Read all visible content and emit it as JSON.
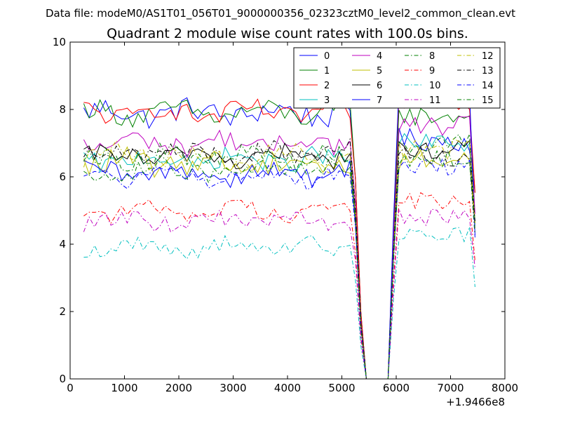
{
  "header": {
    "datafile": "Data file: modeM0/AS1T01_056T01_9000000356_02323cztM0_level2_common_clean.evt"
  },
  "chart_data": {
    "type": "line",
    "title": "Quadrant 2 module wise count rates with 100.0s bins.",
    "xlabel": "",
    "ylabel": "",
    "xlim": [
      0,
      8000
    ],
    "ylim": [
      0,
      10
    ],
    "x_offset_label": "+1.9466e8",
    "x_ticks": [
      "0",
      "1000",
      "2000",
      "3000",
      "4000",
      "5000",
      "6000",
      "7000",
      "8000"
    ],
    "y_ticks": [
      "0",
      "2",
      "4",
      "6",
      "8",
      "10"
    ],
    "grid": false,
    "legend": {
      "placement": "top-right",
      "ncol": 4
    },
    "x_segment_1": {
      "start": 250,
      "end": 5350,
      "step": 100
    },
    "x_segment_2": {
      "start": 5450,
      "end": 5850,
      "step": 100
    },
    "x_segment_3": {
      "start": 5950,
      "end": 7450,
      "step": 100
    },
    "series": [
      {
        "name": "0",
        "color": "#0000ff",
        "dash": "solid",
        "level": 7.9,
        "high": 7.1,
        "amp": 0.35
      },
      {
        "name": "1",
        "color": "#008000",
        "dash": "solid",
        "level": 7.9,
        "high": 7.8,
        "amp": 0.3
      },
      {
        "name": "2",
        "color": "#ff0000",
        "dash": "solid",
        "level": 7.9,
        "high": 8.3,
        "amp": 0.3
      },
      {
        "name": "3",
        "color": "#00bfbf",
        "dash": "solid",
        "level": 6.5,
        "high": 7.0,
        "amp": 0.3
      },
      {
        "name": "4",
        "color": "#bf00bf",
        "dash": "solid",
        "level": 7.0,
        "high": 7.5,
        "amp": 0.3
      },
      {
        "name": "5",
        "color": "#bfbf00",
        "dash": "solid",
        "level": 6.4,
        "high": 6.5,
        "amp": 0.35
      },
      {
        "name": "6",
        "color": "#000000",
        "dash": "solid",
        "level": 6.6,
        "high": 6.8,
        "amp": 0.3
      },
      {
        "name": "7",
        "color": "#0000ff",
        "dash": "solid",
        "level": 6.1,
        "high": 8.5,
        "amp": 0.3
      },
      {
        "name": "8",
        "color": "#008000",
        "dash": "dashdot",
        "level": 6.6,
        "high": 7.0,
        "amp": 0.3
      },
      {
        "name": "9",
        "color": "#ff0000",
        "dash": "dashdot",
        "level": 5.0,
        "high": 5.3,
        "amp": 0.25
      },
      {
        "name": "10",
        "color": "#00bfbf",
        "dash": "dashdot",
        "level": 3.9,
        "high": 4.3,
        "amp": 0.25
      },
      {
        "name": "11",
        "color": "#bf00bf",
        "dash": "dashdot",
        "level": 4.7,
        "high": 4.8,
        "amp": 0.25
      },
      {
        "name": "12",
        "color": "#bfbf00",
        "dash": "dashdot",
        "level": 6.6,
        "high": 6.8,
        "amp": 0.35
      },
      {
        "name": "13",
        "color": "#000000",
        "dash": "dashdot",
        "level": 6.7,
        "high": 6.6,
        "amp": 0.3
      },
      {
        "name": "14",
        "color": "#0000ff",
        "dash": "dashdot",
        "level": 6.0,
        "high": 6.3,
        "amp": 0.25
      },
      {
        "name": "15",
        "color": "#008000",
        "dash": "dashdot",
        "level": 6.2,
        "high": 6.5,
        "amp": 0.3
      }
    ]
  }
}
